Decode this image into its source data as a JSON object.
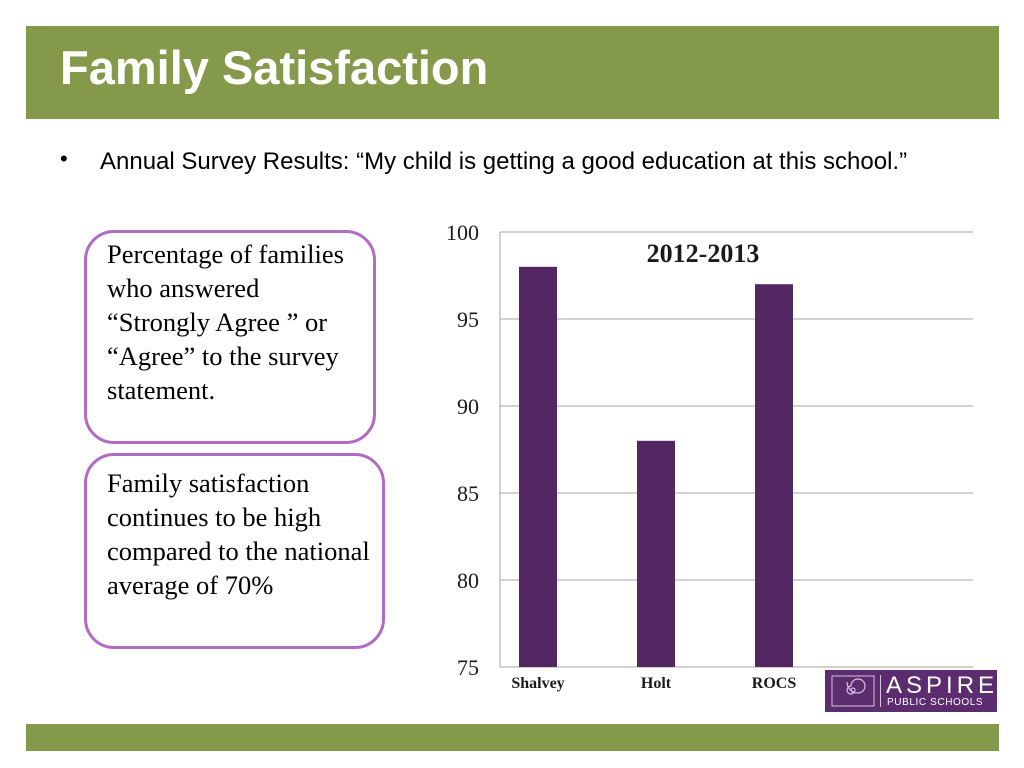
{
  "slide": {
    "title": "Family Satisfaction",
    "bullet_marker": "•",
    "bullet_text": "Annual Survey Results:  “My child is getting a good education at this school.”"
  },
  "notes": [
    {
      "text": "Percentage of families who answered “Strongly Agree ” or “Agree”  to the survey statement."
    },
    {
      "text": "Family satisfaction continues to be high compared to the national average of 70%"
    }
  ],
  "chart_data": {
    "type": "bar",
    "title": "2012-2013",
    "categories": [
      "Shalvey",
      "Holt",
      "ROCS"
    ],
    "values": [
      98,
      88,
      97
    ],
    "ylim": [
      75,
      100
    ],
    "yticks": [
      75,
      80,
      85,
      90,
      95,
      100
    ],
    "xlabel": "",
    "ylabel": "",
    "grid": true,
    "legend": "none",
    "bar_color": "#532761"
  },
  "logo": {
    "name": "ASPIRE",
    "subtitle": "PUBLIC SCHOOLS",
    "icon": "spiral-icon",
    "color": "#5b2d6e"
  },
  "colors": {
    "accent": "#84994a",
    "callout_border": "#b06bc3"
  }
}
